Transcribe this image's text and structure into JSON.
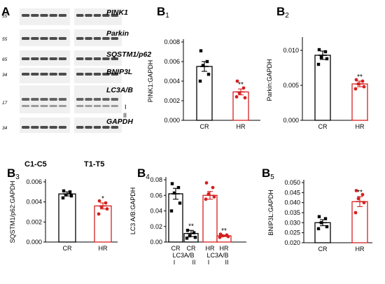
{
  "panel_A": {
    "label": "A",
    "bands": [
      {
        "protein": "PINK1",
        "mw": "55"
      },
      {
        "protein": "Parkin",
        "mw": "55"
      },
      {
        "protein": "SQSTM1/p62",
        "mw": "65"
      },
      {
        "protein": "BNIP3L",
        "mw": "34"
      },
      {
        "protein": "LC3A/B",
        "mw": "17"
      },
      {
        "protein": "GAPDH",
        "mw": "34"
      }
    ],
    "lc3_forms": [
      "I",
      "II"
    ],
    "group_labels": [
      "C1-C5",
      "T1-T5"
    ]
  },
  "colors": {
    "control": "#000000",
    "treated": "#d62020"
  },
  "chart_data": [
    {
      "id": "B1",
      "label": "B",
      "sub": "1",
      "type": "bar",
      "categories": [
        "CR",
        "HR"
      ],
      "values": [
        0.0055,
        0.0029
      ],
      "errors": [
        0.0005,
        0.0003
      ],
      "points": [
        [
          0.0071,
          0.006,
          0.0056,
          0.0047,
          0.004
        ],
        [
          0.004,
          0.0033,
          0.0028,
          0.0023,
          0.0024
        ]
      ],
      "significance": [
        "",
        "**"
      ],
      "ylabel": "PINK1:GAPDH",
      "ylim": [
        0,
        0.008
      ],
      "yticks": [
        "0.000",
        "0.002",
        "0.004",
        "0.006",
        "0.008"
      ],
      "ytick_values": [
        0,
        0.002,
        0.004,
        0.006,
        0.008
      ]
    },
    {
      "id": "B2",
      "label": "B",
      "sub": "2",
      "type": "bar",
      "categories": [
        "CR",
        "HR"
      ],
      "values": [
        0.0093,
        0.0052
      ],
      "errors": [
        0.0006,
        0.0004
      ],
      "points": [
        [
          0.0101,
          0.0098,
          0.009,
          0.0088,
          0.008
        ],
        [
          0.0058,
          0.0056,
          0.0052,
          0.0048,
          0.0045
        ]
      ],
      "significance": [
        "",
        "**"
      ],
      "ylabel": "Parkin:GAPDH",
      "ylim": [
        0,
        0.0115
      ],
      "yticks": [
        "0.000",
        "0.005",
        "0.010"
      ],
      "ytick_values": [
        0,
        0.005,
        0.01
      ]
    },
    {
      "id": "B3",
      "label": "B",
      "sub": "3",
      "type": "bar",
      "categories": [
        "CR",
        "HR"
      ],
      "values": [
        0.0048,
        0.0036
      ],
      "errors": [
        0.0002,
        0.0003
      ],
      "points": [
        [
          0.0051,
          0.005,
          0.0047,
          0.0046,
          0.0044
        ],
        [
          0.0041,
          0.0039,
          0.0035,
          0.0033,
          0.0028
        ]
      ],
      "significance": [
        "",
        "*"
      ],
      "ylabel": "SQSTM1/p62:GAPDH",
      "ylim": [
        0,
        0.006
      ],
      "yticks": [
        "0.000",
        "0.002",
        "0.004",
        "0.006"
      ],
      "ytick_values": [
        0,
        0.002,
        0.004,
        0.006
      ]
    },
    {
      "id": "B4",
      "label": "B",
      "sub": "4",
      "type": "bar",
      "categories": [
        "CR",
        "CR",
        "HR",
        "HR"
      ],
      "group_labels": [
        "LC3A/B",
        "LC3A/B"
      ],
      "form_labels": [
        "I",
        "II",
        "I",
        "II"
      ],
      "values": [
        0.062,
        0.011,
        0.06,
        0.008
      ],
      "errors": [
        0.007,
        0.004,
        0.005,
        0.001
      ],
      "points": [
        [
          0.075,
          0.07,
          0.063,
          0.05,
          0.04
        ],
        [
          0.015,
          0.012,
          0.008,
          0.006,
          0.005
        ],
        [
          0.076,
          0.07,
          0.062,
          0.058,
          0.055
        ],
        [
          0.01,
          0.009,
          0.008,
          0.007,
          0.006
        ]
      ],
      "bar_colors": [
        "control",
        "control",
        "treated",
        "treated"
      ],
      "significance": [
        "",
        "**",
        "",
        "**"
      ],
      "ylabel": "LC3 A/B:GAPDH",
      "ylim": [
        0,
        0.08
      ],
      "yticks": [
        "0.00",
        "0.02",
        "0.04",
        "0.06",
        "0.08"
      ],
      "ytick_values": [
        0,
        0.02,
        0.04,
        0.06,
        0.08
      ]
    },
    {
      "id": "B5",
      "label": "B",
      "sub": "5",
      "type": "bar",
      "categories": [
        "CR",
        "HR"
      ],
      "values": [
        0.03,
        0.0405
      ],
      "errors": [
        0.0015,
        0.0025
      ],
      "points": [
        [
          0.033,
          0.032,
          0.03,
          0.028,
          0.027
        ],
        [
          0.046,
          0.044,
          0.042,
          0.04,
          0.035
        ]
      ],
      "significance": [
        "",
        "**"
      ],
      "ylabel": "BNIP3L:GAPDH",
      "ylim": [
        0.02,
        0.05
      ],
      "yticks": [
        "0.020",
        "0.025",
        "0.030",
        "0.035",
        "0.040",
        "0.045",
        "0.050"
      ],
      "ytick_values": [
        0.02,
        0.025,
        0.03,
        0.035,
        0.04,
        0.045,
        0.05
      ]
    }
  ]
}
